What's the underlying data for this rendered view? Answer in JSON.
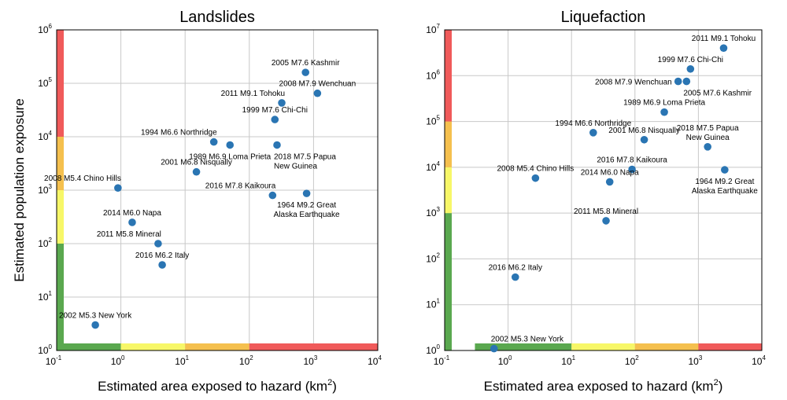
{
  "figure": {
    "ylabel": "Estimated population exposure",
    "colors": {
      "point": "#2a75b3",
      "grid": "#c8c8c8",
      "band_green": "#5aa84f",
      "band_yellow": "#f7f768",
      "band_orange": "#f5c04e",
      "band_red": "#f05a5a"
    }
  },
  "chart_data": [
    {
      "type": "scatter",
      "title": "Landslides",
      "xlabel": "Estimated area exposed to hazard",
      "xlabel_unit": "(km",
      "xlabel_unit_exp": "2",
      "xlabel_unit_close": ")",
      "xscale": "log",
      "yscale": "log",
      "xlim": [
        0.1,
        10000
      ],
      "ylim": [
        1,
        1000000
      ],
      "xticks": [
        {
          "base": "10",
          "exp": "-1"
        },
        {
          "base": "10",
          "exp": "0"
        },
        {
          "base": "10",
          "exp": "1"
        },
        {
          "base": "10",
          "exp": "2"
        },
        {
          "base": "10",
          "exp": "3"
        },
        {
          "base": "10",
          "exp": "4"
        }
      ],
      "yticks": [
        {
          "base": "10",
          "exp": "0"
        },
        {
          "base": "10",
          "exp": "1"
        },
        {
          "base": "10",
          "exp": "2"
        },
        {
          "base": "10",
          "exp": "3"
        },
        {
          "base": "10",
          "exp": "4"
        },
        {
          "base": "10",
          "exp": "5"
        },
        {
          "base": "10",
          "exp": "6"
        }
      ],
      "grid": true,
      "x_bands": [
        {
          "from": 0.1,
          "to": 1,
          "color": "green"
        },
        {
          "from": 1,
          "to": 10,
          "color": "yellow"
        },
        {
          "from": 10,
          "to": 100,
          "color": "orange"
        },
        {
          "from": 100,
          "to": 10000,
          "color": "red"
        }
      ],
      "y_bands": [
        {
          "from": 1,
          "to": 100,
          "color": "green"
        },
        {
          "from": 100,
          "to": 1000,
          "color": "yellow"
        },
        {
          "from": 1000,
          "to": 10000,
          "color": "orange"
        },
        {
          "from": 10000,
          "to": 1000000,
          "color": "red"
        }
      ],
      "points": [
        {
          "label": [
            "2005 M7.6 Kashmir"
          ],
          "x": 750,
          "y": 160000,
          "anchor": "above-center"
        },
        {
          "label": [
            "2008 M7.9 Wenchuan"
          ],
          "x": 1150,
          "y": 65000,
          "anchor": "above-center"
        },
        {
          "label": [
            "2011 M9.1 Tohoku"
          ],
          "x": 320,
          "y": 43000,
          "anchor": "above-left"
        },
        {
          "label": [
            "1999 M7.6 Chi-Chi"
          ],
          "x": 250,
          "y": 21000,
          "anchor": "above-center"
        },
        {
          "label": [
            "1994 M6.6 Northridge"
          ],
          "x": 28,
          "y": 8000,
          "anchor": "above-left"
        },
        {
          "label": [
            "1989 M6.9 Loma Prieta"
          ],
          "x": 50,
          "y": 7000,
          "anchor": "below-center"
        },
        {
          "label": [
            "2018 M7.5 Papua",
            "New Guinea"
          ],
          "x": 270,
          "y": 7000,
          "anchor": "below-right"
        },
        {
          "label": [
            "2001 M6.8 Nisqually"
          ],
          "x": 15,
          "y": 2200,
          "anchor": "above-center"
        },
        {
          "label": [
            "2008 M5.4 Chino Hills"
          ],
          "x": 0.9,
          "y": 1100,
          "anchor": "above-left"
        },
        {
          "label": [
            "2016 M7.8 Kaikoura"
          ],
          "x": 230,
          "y": 800,
          "anchor": "above-left"
        },
        {
          "label": [
            "1964 M9.2 Great",
            "Alaska Earthquake"
          ],
          "x": 780,
          "y": 870,
          "anchor": "below-center"
        },
        {
          "label": [
            "2014 M6.0 Napa"
          ],
          "x": 1.5,
          "y": 250,
          "anchor": "above-center"
        },
        {
          "label": [
            "2011 M5.8 Mineral"
          ],
          "x": 3.8,
          "y": 100,
          "anchor": "above-left"
        },
        {
          "label": [
            "2016 M6.2 Italy"
          ],
          "x": 4.4,
          "y": 40,
          "anchor": "above-center"
        },
        {
          "label": [
            "2002 M5.3 New York"
          ],
          "x": 0.4,
          "y": 3,
          "anchor": "above-center"
        }
      ]
    },
    {
      "type": "scatter",
      "title": "Liquefaction",
      "xlabel": "Estimated area exposed to hazard",
      "xlabel_unit": "(km",
      "xlabel_unit_exp": "2",
      "xlabel_unit_close": ")",
      "xscale": "log",
      "yscale": "log",
      "xlim": [
        0.1,
        10000
      ],
      "ylim": [
        1,
        10000000
      ],
      "xticks": [
        {
          "base": "10",
          "exp": "-1"
        },
        {
          "base": "10",
          "exp": "0"
        },
        {
          "base": "10",
          "exp": "1"
        },
        {
          "base": "10",
          "exp": "2"
        },
        {
          "base": "10",
          "exp": "3"
        },
        {
          "base": "10",
          "exp": "4"
        }
      ],
      "yticks": [
        {
          "base": "10",
          "exp": "0"
        },
        {
          "base": "10",
          "exp": "1"
        },
        {
          "base": "10",
          "exp": "2"
        },
        {
          "base": "10",
          "exp": "3"
        },
        {
          "base": "10",
          "exp": "4"
        },
        {
          "base": "10",
          "exp": "5"
        },
        {
          "base": "10",
          "exp": "6"
        },
        {
          "base": "10",
          "exp": "7"
        }
      ],
      "grid": true,
      "x_bands": [
        {
          "from": 0.3,
          "to": 10,
          "color": "green"
        },
        {
          "from": 10,
          "to": 100,
          "color": "yellow"
        },
        {
          "from": 100,
          "to": 1000,
          "color": "orange"
        },
        {
          "from": 1000,
          "to": 10000,
          "color": "red"
        }
      ],
      "y_bands": [
        {
          "from": 1,
          "to": 1000,
          "color": "green"
        },
        {
          "from": 1000,
          "to": 10000,
          "color": "yellow"
        },
        {
          "from": 10000,
          "to": 100000,
          "color": "orange"
        },
        {
          "from": 100000,
          "to": 10000000,
          "color": "red"
        }
      ],
      "points": [
        {
          "label": [
            "2011 M9.1 Tohoku"
          ],
          "x": 2500,
          "y": 4000000,
          "anchor": "above-center"
        },
        {
          "label": [
            "1999 M7.6 Chi-Chi"
          ],
          "x": 750,
          "y": 1400000,
          "anchor": "above-center"
        },
        {
          "label": [
            "2008 M7.9 Wenchuan"
          ],
          "x": 480,
          "y": 750000,
          "anchor": "left"
        },
        {
          "label": [
            "2005 M7.6 Kashmir"
          ],
          "x": 650,
          "y": 750000,
          "anchor": "below-right"
        },
        {
          "label": [
            "1989 M6.9 Loma Prieta"
          ],
          "x": 290,
          "y": 160000,
          "anchor": "above-center"
        },
        {
          "label": [
            "1994 M6.6 Northridge"
          ],
          "x": 22,
          "y": 57000,
          "anchor": "above-center"
        },
        {
          "label": [
            "2001 M6.8 Nisqually"
          ],
          "x": 140,
          "y": 40000,
          "anchor": "above-center"
        },
        {
          "label": [
            "2018 M7.5 Papua",
            "New Guinea"
          ],
          "x": 1400,
          "y": 28000,
          "anchor": "above-center"
        },
        {
          "label": [
            "2016 M7.8 Kaikoura"
          ],
          "x": 90,
          "y": 9000,
          "anchor": "above-center"
        },
        {
          "label": [
            "2008 M5.4 Chino Hills"
          ],
          "x": 2.7,
          "y": 5800,
          "anchor": "above-center"
        },
        {
          "label": [
            "2014 M6.0 Napa"
          ],
          "x": 40,
          "y": 4800,
          "anchor": "above-center"
        },
        {
          "label": [
            "1964 M9.2 Great",
            "Alaska Earthquake"
          ],
          "x": 2600,
          "y": 8800,
          "anchor": "below-center"
        },
        {
          "label": [
            "2011 M5.8 Mineral"
          ],
          "x": 35,
          "y": 680,
          "anchor": "above-center"
        },
        {
          "label": [
            "2016 M6.2 Italy"
          ],
          "x": 1.3,
          "y": 40,
          "anchor": "above-center"
        },
        {
          "label": [
            "2002 M5.3 New York"
          ],
          "x": 0.6,
          "y": 1.1,
          "anchor": "above-right"
        }
      ]
    }
  ]
}
